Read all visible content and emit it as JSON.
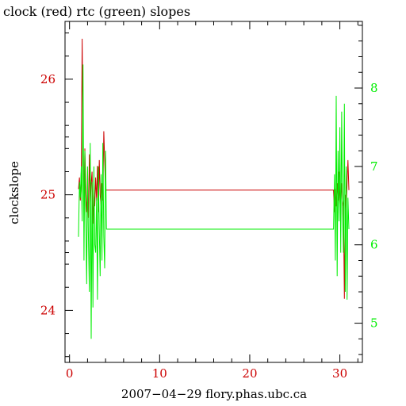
{
  "chart_data": {
    "type": "line",
    "title": "clock (red) rtc (green) slopes",
    "ylabel": "clockslope",
    "xlabel": "2007−04−29 flory.phas.ubc.ca",
    "xlim": [
      -0.5,
      32.5
    ],
    "ylim_left": [
      23.55,
      26.5
    ],
    "ylim_right": [
      4.5,
      8.85
    ],
    "x_ticks": [
      0,
      10,
      20,
      30
    ],
    "y_ticks_left": [
      24,
      25,
      26
    ],
    "y_ticks_right": [
      5,
      6,
      7,
      8
    ],
    "grid": false,
    "colors": {
      "clock": "#cc0000",
      "rtc": "#00ee00",
      "axis": "#000000",
      "left_ticks": "#cc0000",
      "right_ticks": "#00ee00"
    },
    "series": [
      {
        "name": "clock",
        "axis": "left",
        "x": [
          1.0,
          1.1,
          1.2,
          1.3,
          1.4,
          1.5,
          1.6,
          1.7,
          1.8,
          1.9,
          2.0,
          2.1,
          2.2,
          2.3,
          2.4,
          2.5,
          2.6,
          2.7,
          2.8,
          2.9,
          3.0,
          3.1,
          3.2,
          3.3,
          3.4,
          3.5,
          3.6,
          3.7,
          3.8,
          3.9,
          4.0,
          4.1,
          4.2,
          16.0,
          29.3,
          29.4,
          29.5,
          29.6,
          29.7,
          29.8,
          29.9,
          30.0,
          30.1,
          30.2,
          30.3,
          30.4,
          30.5,
          30.6,
          30.7,
          30.8,
          30.9,
          31.0
        ],
        "y": [
          25.05,
          25.15,
          24.95,
          25.2,
          26.35,
          25.5,
          24.9,
          25.4,
          25.1,
          24.85,
          25.0,
          24.8,
          25.35,
          24.9,
          25.1,
          25.2,
          24.75,
          25.0,
          24.9,
          25.15,
          24.95,
          25.25,
          24.85,
          25.3,
          25.0,
          24.9,
          25.1,
          24.95,
          25.55,
          25.3,
          25.05,
          25.04,
          25.04,
          25.04,
          25.04,
          24.85,
          25.05,
          24.9,
          25.1,
          24.95,
          25.2,
          25.0,
          24.9,
          25.1,
          24.95,
          24.9,
          24.1,
          25.0,
          24.88,
          25.1,
          25.3,
          25.04
        ]
      },
      {
        "name": "rtc",
        "axis": "right",
        "x": [
          1.0,
          1.1,
          1.2,
          1.3,
          1.4,
          1.5,
          1.6,
          1.7,
          1.8,
          1.9,
          2.0,
          2.1,
          2.2,
          2.3,
          2.4,
          2.5,
          2.6,
          2.7,
          2.8,
          2.9,
          3.0,
          3.1,
          3.2,
          3.3,
          3.4,
          3.5,
          3.6,
          3.7,
          3.8,
          3.9,
          4.0,
          4.1,
          4.2,
          16.0,
          29.3,
          29.4,
          29.5,
          29.6,
          29.7,
          29.8,
          29.9,
          30.0,
          30.1,
          30.2,
          30.3,
          30.4,
          30.5,
          30.6,
          30.7,
          30.8,
          30.9,
          31.0
        ],
        "y": [
          6.1,
          6.8,
          6.6,
          7.0,
          6.3,
          8.3,
          5.8,
          7.2,
          6.4,
          5.5,
          7.0,
          6.1,
          5.4,
          7.3,
          4.8,
          6.8,
          5.2,
          7.0,
          6.0,
          5.9,
          6.6,
          5.3,
          7.0,
          6.2,
          5.6,
          6.9,
          5.8,
          7.3,
          6.1,
          5.7,
          7.2,
          6.2,
          6.2,
          6.2,
          6.2,
          6.9,
          5.8,
          7.9,
          5.6,
          7.2,
          6.3,
          7.5,
          5.9,
          7.7,
          6.4,
          5.9,
          7.8,
          5.4,
          7.0,
          5.3,
          6.6,
          6.2
        ]
      }
    ]
  }
}
